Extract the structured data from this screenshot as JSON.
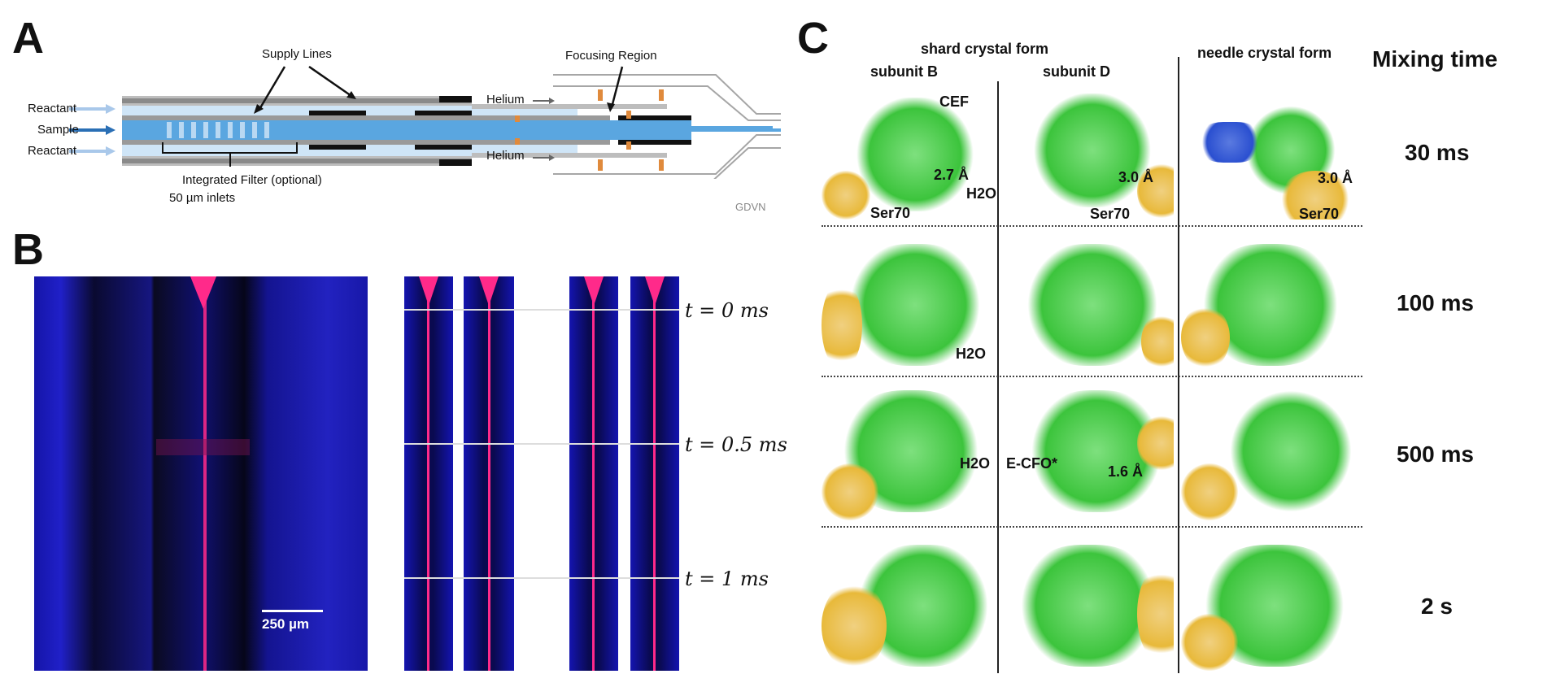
{
  "panels": {
    "a": "A",
    "b": "B",
    "c": "C"
  },
  "panel_a": {
    "supply_lines": "Supply Lines",
    "focusing_region": "Focusing Region",
    "reactant_top": "Reactant",
    "sample": "Sample",
    "reactant_bottom": "Reactant",
    "helium_top": "Helium",
    "helium_bottom": "Helium",
    "filter_line1": "Integrated Filter (optional)",
    "filter_line2": "50 µm inlets",
    "gdvn": "GDVN",
    "colors": {
      "tube_gray": "#9e9e9e",
      "sample_blue": "#5aa6e0",
      "light_blue": "#c9e2f6",
      "orange": "#e08a3c"
    }
  },
  "panel_b": {
    "scale_bar": "250 µm",
    "time_labels": [
      "t = 0 ms",
      "t = 0.5 ms",
      "t = 1 ms"
    ],
    "colors": {
      "background_blue": "#1a1acc",
      "jet_pink": "#ff2a8a"
    }
  },
  "panel_c": {
    "header_shard": "shard crystal form",
    "subunit_b": "subunit B",
    "subunit_d": "subunit D",
    "header_needle": "needle crystal form",
    "mixing_time_title": "Mixing time",
    "mixing_times": [
      "30 ms",
      "100 ms",
      "500 ms",
      "2 s"
    ],
    "annotations": {
      "cef": "CEF",
      "dist_b": "2.7 Å",
      "h2o_r1": "H2O",
      "ser70_b": "Ser70",
      "dist_d": "3.0 Å",
      "ser70_d": "Ser70",
      "dist_n": "3.0 Å",
      "ser70_n": "Ser70",
      "h2o_r2": "H2O",
      "h2o_r3": "H2O",
      "ecfo": "E-CFO*",
      "dist_r3": "1.6 Å"
    },
    "colors": {
      "density_green": "#3cc43c",
      "ribbon_gold": "#e8b93a",
      "ligand_blue": "#2a4fd0"
    }
  }
}
